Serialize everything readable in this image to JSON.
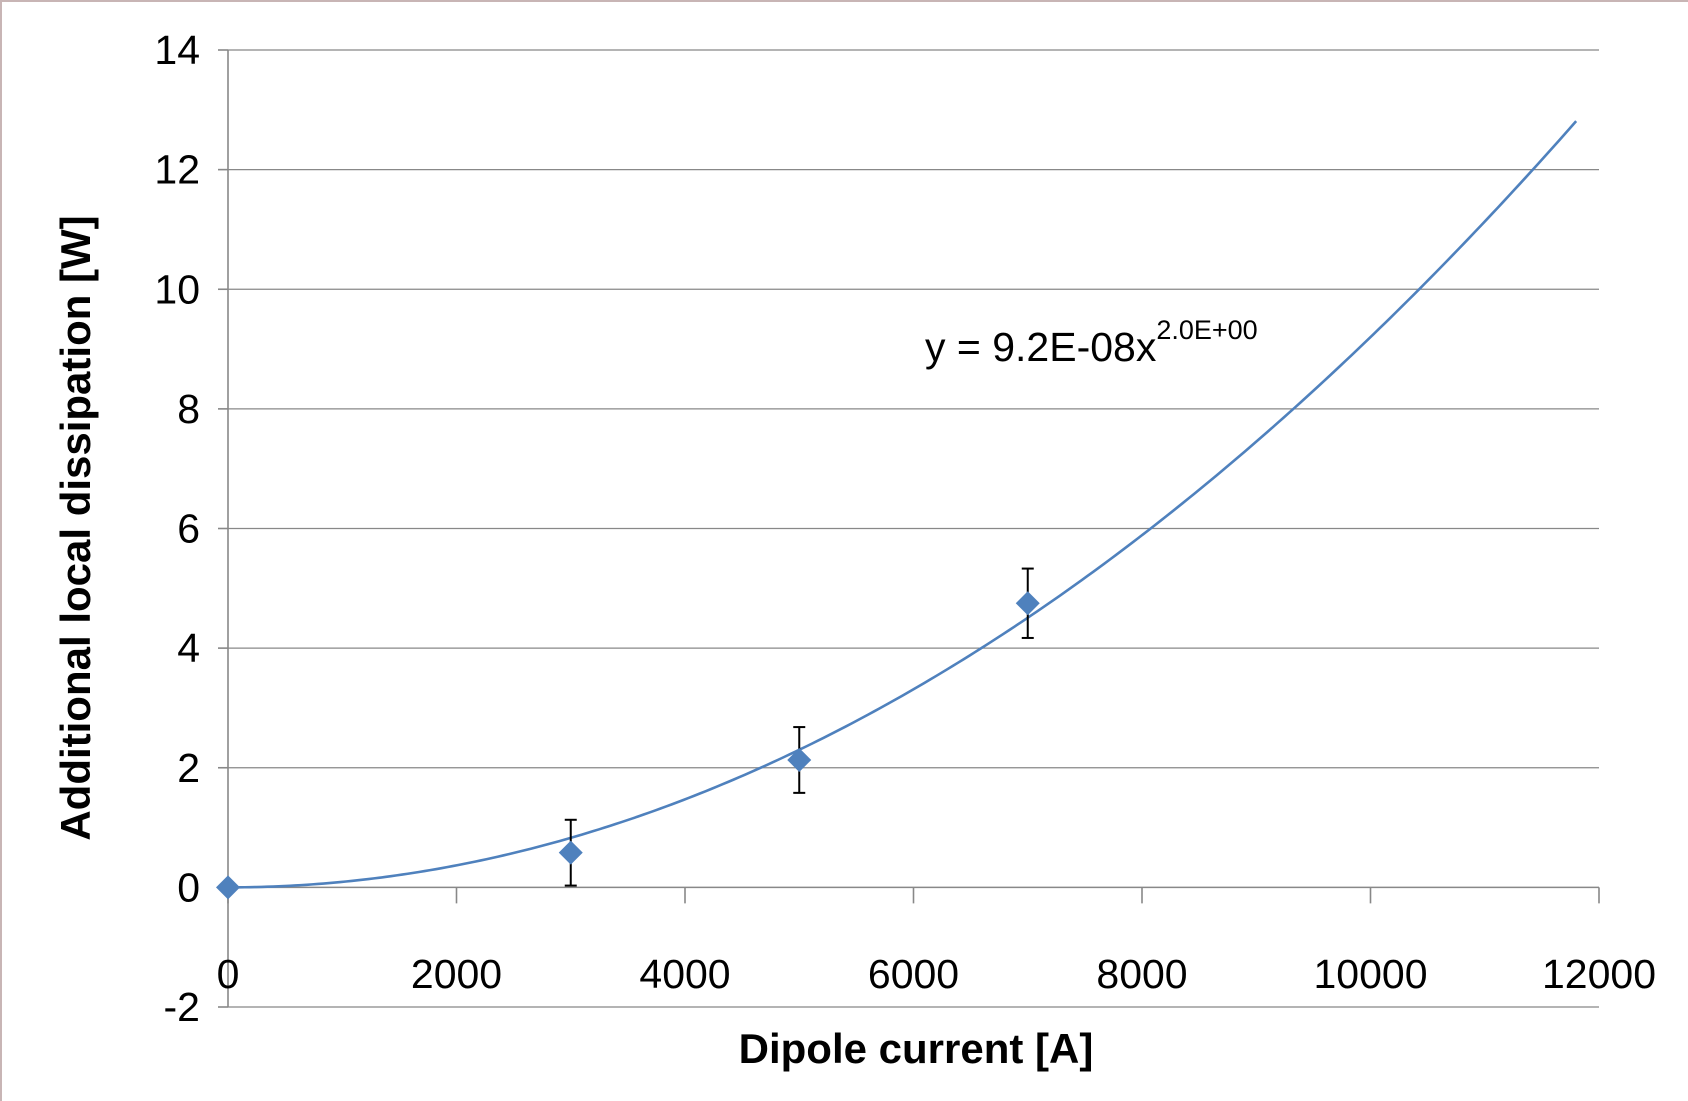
{
  "chart_data": {
    "type": "scatter",
    "xlabel": "Dipole current [A]",
    "ylabel": "Additional local dissipation [W]",
    "xlim": [
      0,
      12000
    ],
    "ylim": [
      -2,
      14
    ],
    "x_ticks": [
      "0",
      "2000",
      "4000",
      "6000",
      "8000",
      "10000",
      "12000"
    ],
    "y_ticks": [
      "-2",
      "0",
      "2",
      "4",
      "6",
      "8",
      "10",
      "12",
      "14"
    ],
    "grid": true,
    "legend": "none",
    "series": [
      {
        "marker": "diamond",
        "color": "#4f81bd",
        "points": [
          {
            "x": 0,
            "y": 0,
            "err": 0
          },
          {
            "x": 3000,
            "y": 0.58,
            "err": 0.55
          },
          {
            "x": 5000,
            "y": 2.13,
            "err": 0.55
          },
          {
            "x": 7000,
            "y": 4.75,
            "err": 0.58
          }
        ]
      }
    ],
    "trendline": {
      "type": "power",
      "coefficient": 9.2e-08,
      "exponent": 2.0,
      "x_range": [
        0,
        11800
      ],
      "color": "#4f81bd",
      "label_main": "y = 9.2E-08x",
      "label_sup": "2.0E+00"
    }
  }
}
